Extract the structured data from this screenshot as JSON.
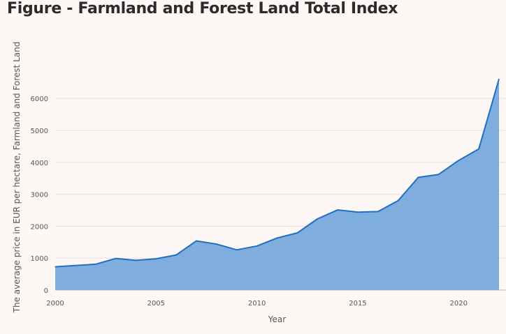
{
  "page": {
    "title": "Figure - Farmland and Forest Land Total Index"
  },
  "chart_data": {
    "type": "area",
    "title": "Figure - Farmland and Forest Land Total Index",
    "xlabel": "Year",
    "ylabel": "The average price in EUR per hectare, Farmland and Forest Land",
    "x": [
      2000,
      2001,
      2002,
      2003,
      2004,
      2005,
      2006,
      2007,
      2008,
      2009,
      2010,
      2011,
      2012,
      2013,
      2014,
      2015,
      2016,
      2017,
      2018,
      2019,
      2020,
      2021,
      2022
    ],
    "series": [
      {
        "values": [
          730,
          770,
          810,
          990,
          930,
          980,
          1100,
          1540,
          1440,
          1260,
          1380,
          1630,
          1790,
          2230,
          2510,
          2440,
          2460,
          2800,
          3530,
          3620,
          4060,
          4420,
          6610
        ],
        "color": "#1f6fc2",
        "fill": "#7eadde"
      }
    ],
    "xlim": [
      2000,
      2022
    ],
    "ylim": [
      0,
      6900
    ],
    "x_ticks": [
      2000,
      2005,
      2010,
      2015,
      2020
    ],
    "y_ticks": [
      0,
      1000,
      2000,
      3000,
      4000,
      5000,
      6000
    ],
    "grid": true,
    "legend": "none"
  }
}
